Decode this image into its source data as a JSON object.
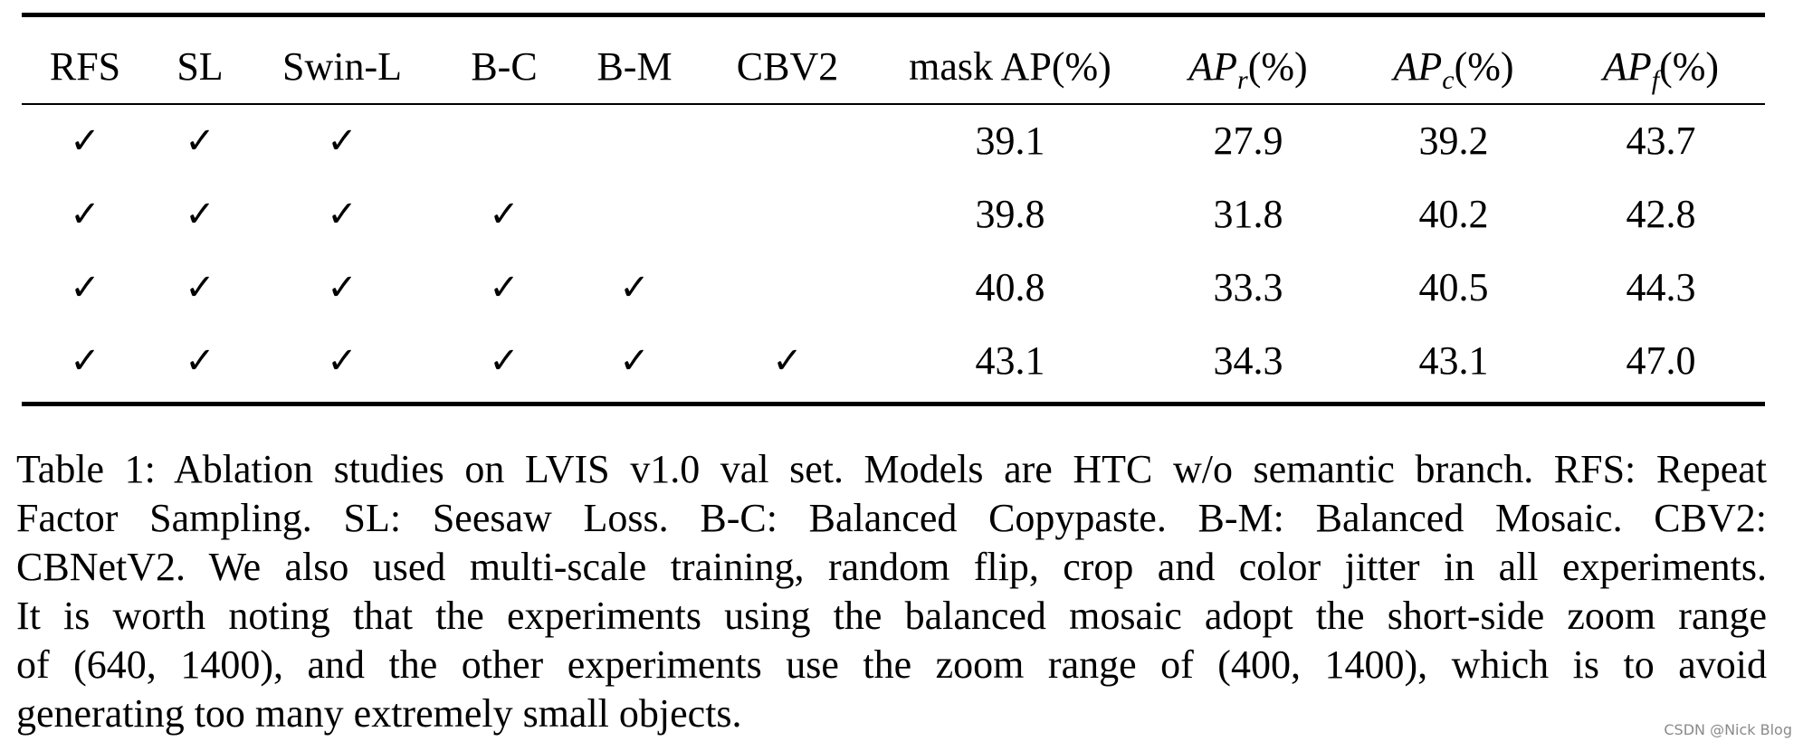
{
  "table": {
    "headers": {
      "rfs": "RFS",
      "sl": "SL",
      "swin": "Swin-L",
      "bc": "B-C",
      "bm": "B-M",
      "cbv2": "CBV2",
      "mask_ap": "mask AP(%)",
      "ap_r": {
        "base": "AP",
        "sub": "r",
        "unit": "(%)"
      },
      "ap_c": {
        "base": "AP",
        "sub": "c",
        "unit": "(%)"
      },
      "ap_f": {
        "base": "AP",
        "sub": "f",
        "unit": "(%)"
      }
    },
    "check_mark": "✓",
    "rows": [
      {
        "checks": [
          true,
          true,
          true,
          false,
          false,
          false
        ],
        "mask_ap": "39.1",
        "ap_r": "27.9",
        "ap_c": "39.2",
        "ap_f": "43.7"
      },
      {
        "checks": [
          true,
          true,
          true,
          true,
          false,
          false
        ],
        "mask_ap": "39.8",
        "ap_r": "31.8",
        "ap_c": "40.2",
        "ap_f": "42.8"
      },
      {
        "checks": [
          true,
          true,
          true,
          true,
          true,
          false
        ],
        "mask_ap": "40.8",
        "ap_r": "33.3",
        "ap_c": "40.5",
        "ap_f": "44.3"
      },
      {
        "checks": [
          true,
          true,
          true,
          true,
          true,
          true
        ],
        "mask_ap": "43.1",
        "ap_r": "34.3",
        "ap_c": "43.1",
        "ap_f": "47.0"
      }
    ]
  },
  "caption": {
    "lines": [
      "Table 1: Ablation studies on LVIS v1.0 val set. Models are HTC w/o semantic branch. RFS: Repeat",
      "Factor Sampling. SL: Seesaw Loss. B-C: Balanced Copypaste. B-M: Balanced Mosaic. CBV2:",
      "CBNetV2. We also used multi-scale training, random flip, crop and color jitter in all experiments.",
      "It is worth noting that the experiments using the balanced mosaic adopt the short-side zoom range",
      "of (640, 1400), and the other experiments use the zoom range of (400, 1400), which is to avoid",
      "generating too many extremely small objects."
    ]
  },
  "watermark": "CSDN @Nick Blog"
}
